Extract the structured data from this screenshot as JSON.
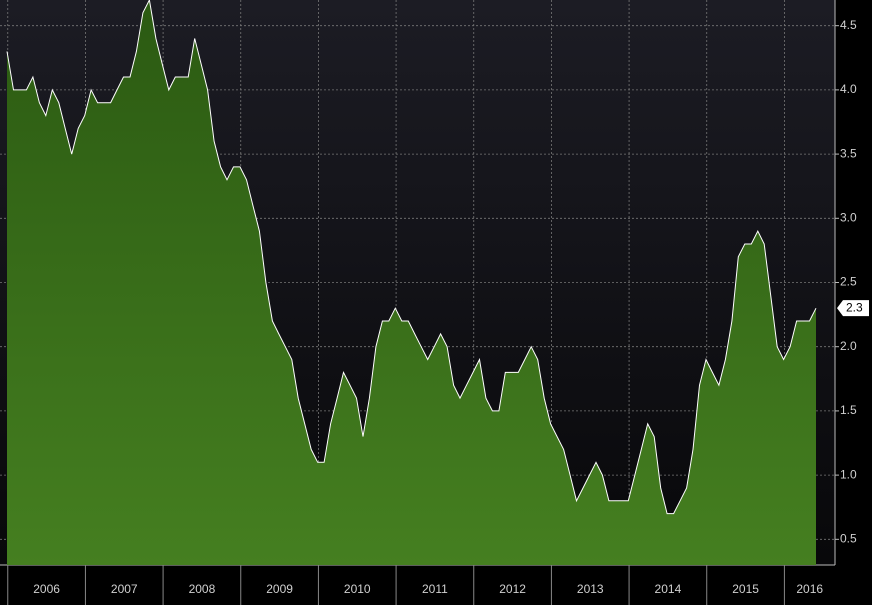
{
  "chart_data": {
    "type": "area",
    "categories": [
      "2006",
      null,
      null,
      null,
      null,
      null,
      null,
      null,
      null,
      null,
      null,
      null,
      "2007",
      null,
      null,
      null,
      null,
      null,
      null,
      null,
      null,
      null,
      null,
      null,
      "2008",
      null,
      null,
      null,
      null,
      null,
      null,
      null,
      null,
      null,
      null,
      null,
      "2009",
      null,
      null,
      null,
      null,
      null,
      null,
      null,
      null,
      null,
      null,
      null,
      "2010",
      null,
      null,
      null,
      null,
      null,
      null,
      null,
      null,
      null,
      null,
      null,
      "2011",
      null,
      null,
      null,
      null,
      null,
      null,
      null,
      null,
      null,
      null,
      null,
      "2012",
      null,
      null,
      null,
      null,
      null,
      null,
      null,
      null,
      null,
      null,
      null,
      "2013",
      null,
      null,
      null,
      null,
      null,
      null,
      null,
      null,
      null,
      null,
      null,
      "2014",
      null,
      null,
      null,
      null,
      null,
      null,
      null,
      null,
      null,
      null,
      null,
      "2015",
      null,
      null,
      null,
      null,
      null,
      null,
      null,
      null,
      null,
      null,
      null,
      "2016",
      null,
      null,
      null,
      null,
      null
    ],
    "values": [
      4.3,
      4.0,
      4.0,
      4.0,
      4.1,
      3.9,
      3.8,
      4.0,
      3.9,
      3.7,
      3.5,
      3.7,
      3.8,
      4.0,
      3.9,
      3.9,
      3.9,
      4.0,
      4.1,
      4.1,
      4.3,
      4.6,
      4.7,
      4.4,
      4.2,
      4.0,
      4.1,
      4.1,
      4.1,
      4.4,
      4.2,
      4.0,
      3.6,
      3.4,
      3.3,
      3.4,
      3.4,
      3.3,
      3.1,
      2.9,
      2.5,
      2.2,
      2.1,
      2.0,
      1.9,
      1.6,
      1.4,
      1.2,
      1.1,
      1.1,
      1.4,
      1.6,
      1.8,
      1.7,
      1.6,
      1.3,
      1.6,
      2.0,
      2.2,
      2.2,
      2.3,
      2.2,
      2.2,
      2.1,
      2.0,
      1.9,
      2.0,
      2.1,
      2.0,
      1.7,
      1.6,
      1.7,
      1.8,
      1.9,
      1.6,
      1.5,
      1.5,
      1.8,
      1.8,
      1.8,
      1.9,
      2.0,
      1.9,
      1.6,
      1.4,
      1.3,
      1.2,
      1.0,
      0.8,
      0.9,
      1.0,
      1.1,
      1.0,
      0.8,
      0.8,
      0.8,
      0.8,
      1.0,
      1.2,
      1.4,
      1.3,
      0.9,
      0.7,
      0.7,
      0.8,
      0.9,
      1.2,
      1.7,
      1.9,
      1.8,
      1.7,
      1.9,
      2.2,
      2.7,
      2.8,
      2.8,
      2.9,
      2.8,
      2.4,
      2.0,
      1.9,
      2.0,
      2.2,
      2.2,
      2.2,
      2.3
    ],
    "color": "#3f7a1c",
    "ylim": [
      0.3,
      4.7
    ],
    "yticks": [
      0.5,
      {
        "value": 1.0,
        "label": "1.0"
      },
      1.5,
      {
        "value": 2.0,
        "label": "2.0"
      },
      2.5,
      {
        "value": 3.0,
        "label": "3.0"
      },
      3.5,
      {
        "value": 4.0,
        "label": "4.0"
      },
      4.5
    ],
    "grid": true
  }
}
